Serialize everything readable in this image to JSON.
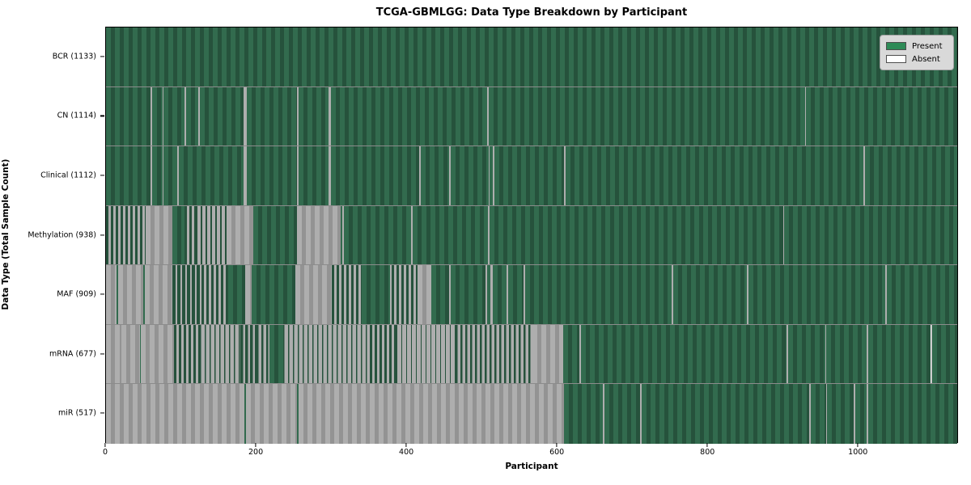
{
  "chart_data": {
    "type": "heatmap",
    "title": "TCGA-GBMLGG: Data Type Breakdown by Participant",
    "xlabel": "Participant",
    "ylabel": "Data Type (Total Sample Count)",
    "x_max": 1133,
    "x_ticks": [
      0,
      200,
      400,
      600,
      800,
      1000
    ],
    "grid": false,
    "legend_position": "upper right",
    "legend": [
      {
        "label": "Present",
        "color": "#2e8b57"
      },
      {
        "label": "Absent",
        "color": "#ffffff"
      }
    ],
    "rows": [
      {
        "name": "BCR",
        "total_sample_count": 1133,
        "label": "BCR (1133)",
        "segments": [
          [
            0,
            1133,
            "p"
          ]
        ]
      },
      {
        "name": "CN",
        "total_sample_count": 1114,
        "label": "CN (1114)",
        "segments": [
          [
            0,
            59,
            "p"
          ],
          [
            59,
            61,
            "a"
          ],
          [
            61,
            75,
            "p"
          ],
          [
            75,
            77,
            "a"
          ],
          [
            77,
            105,
            "p"
          ],
          [
            105,
            107,
            "a"
          ],
          [
            107,
            123,
            "p"
          ],
          [
            123,
            125,
            "a"
          ],
          [
            125,
            183,
            "p"
          ],
          [
            183,
            187,
            "a"
          ],
          [
            187,
            254,
            "p"
          ],
          [
            254,
            256,
            "a"
          ],
          [
            256,
            296,
            "p"
          ],
          [
            296,
            299,
            "a"
          ],
          [
            299,
            507,
            "p"
          ],
          [
            507,
            509,
            "a"
          ],
          [
            509,
            930,
            "p"
          ],
          [
            930,
            932,
            "a"
          ],
          [
            932,
            1133,
            "p"
          ]
        ]
      },
      {
        "name": "Clinical",
        "total_sample_count": 1112,
        "label": "Clinical (1112)",
        "segments": [
          [
            0,
            59,
            "p"
          ],
          [
            59,
            61,
            "a"
          ],
          [
            61,
            75,
            "p"
          ],
          [
            75,
            77,
            "a"
          ],
          [
            77,
            95,
            "p"
          ],
          [
            95,
            97,
            "a"
          ],
          [
            97,
            183,
            "p"
          ],
          [
            183,
            187,
            "a"
          ],
          [
            187,
            254,
            "p"
          ],
          [
            254,
            256,
            "a"
          ],
          [
            256,
            296,
            "p"
          ],
          [
            296,
            299,
            "a"
          ],
          [
            299,
            417,
            "p"
          ],
          [
            417,
            419,
            "a"
          ],
          [
            419,
            457,
            "p"
          ],
          [
            457,
            459,
            "a"
          ],
          [
            459,
            509,
            "p"
          ],
          [
            509,
            511,
            "a"
          ],
          [
            511,
            515,
            "p"
          ],
          [
            515,
            517,
            "a"
          ],
          [
            517,
            610,
            "p"
          ],
          [
            610,
            612,
            "a"
          ],
          [
            612,
            1008,
            "p"
          ],
          [
            1008,
            1010,
            "a"
          ],
          [
            1010,
            1133,
            "p"
          ]
        ]
      },
      {
        "name": "Methylation",
        "total_sample_count": 938,
        "label": "Methylation (938)",
        "segments": [
          [
            0,
            53,
            "m50"
          ],
          [
            53,
            88,
            "a"
          ],
          [
            88,
            104,
            "p"
          ],
          [
            104,
            120,
            "m50"
          ],
          [
            120,
            160,
            "m30"
          ],
          [
            160,
            196,
            "a"
          ],
          [
            196,
            254,
            "p"
          ],
          [
            254,
            312,
            "a"
          ],
          [
            312,
            314,
            "p"
          ],
          [
            314,
            317,
            "a"
          ],
          [
            317,
            406,
            "p"
          ],
          [
            406,
            408,
            "a"
          ],
          [
            408,
            508,
            "p"
          ],
          [
            508,
            510,
            "a"
          ],
          [
            510,
            901,
            "p"
          ],
          [
            901,
            903,
            "a"
          ],
          [
            903,
            1133,
            "p"
          ]
        ]
      },
      {
        "name": "MAF",
        "total_sample_count": 909,
        "label": "MAF (909)",
        "segments": [
          [
            0,
            14,
            "a"
          ],
          [
            14,
            16,
            "p"
          ],
          [
            16,
            50,
            "a"
          ],
          [
            50,
            52,
            "p"
          ],
          [
            52,
            88,
            "a"
          ],
          [
            88,
            127,
            "m70"
          ],
          [
            127,
            163,
            "m50"
          ],
          [
            163,
            185,
            "p"
          ],
          [
            185,
            194,
            "a"
          ],
          [
            194,
            252,
            "p"
          ],
          [
            252,
            300,
            "a"
          ],
          [
            300,
            340,
            "m50"
          ],
          [
            340,
            378,
            "p"
          ],
          [
            378,
            380,
            "a"
          ],
          [
            380,
            415,
            "m50"
          ],
          [
            415,
            433,
            "a"
          ],
          [
            433,
            457,
            "p"
          ],
          [
            457,
            459,
            "a"
          ],
          [
            459,
            505,
            "p"
          ],
          [
            505,
            507,
            "a"
          ],
          [
            507,
            512,
            "p"
          ],
          [
            512,
            515,
            "a"
          ],
          [
            515,
            533,
            "p"
          ],
          [
            533,
            535,
            "a"
          ],
          [
            535,
            556,
            "p"
          ],
          [
            556,
            558,
            "a"
          ],
          [
            558,
            753,
            "p"
          ],
          [
            753,
            755,
            "a"
          ],
          [
            755,
            853,
            "p"
          ],
          [
            853,
            855,
            "a"
          ],
          [
            855,
            1037,
            "p"
          ],
          [
            1037,
            1039,
            "a"
          ],
          [
            1039,
            1133,
            "p"
          ]
        ]
      },
      {
        "name": "mRNA",
        "total_sample_count": 677,
        "label": "mRNA (677)",
        "segments": [
          [
            0,
            20,
            "a"
          ],
          [
            20,
            21,
            "p"
          ],
          [
            21,
            45,
            "a"
          ],
          [
            45,
            46,
            "p"
          ],
          [
            46,
            90,
            "a"
          ],
          [
            90,
            125,
            "m50"
          ],
          [
            125,
            179,
            "m25"
          ],
          [
            179,
            200,
            "m60"
          ],
          [
            200,
            218,
            "m40"
          ],
          [
            218,
            236,
            "p"
          ],
          [
            236,
            351,
            "m25"
          ],
          [
            351,
            387,
            "m50"
          ],
          [
            387,
            465,
            "m20"
          ],
          [
            465,
            568,
            "m40"
          ],
          [
            568,
            608,
            "a"
          ],
          [
            608,
            630,
            "p"
          ],
          [
            630,
            632,
            "a"
          ],
          [
            632,
            906,
            "p"
          ],
          [
            906,
            908,
            "a"
          ],
          [
            908,
            957,
            "p"
          ],
          [
            957,
            959,
            "a"
          ],
          [
            959,
            1012,
            "p"
          ],
          [
            1012,
            1015,
            "a"
          ],
          [
            1015,
            1098,
            "p"
          ],
          [
            1098,
            1100,
            "a"
          ],
          [
            1100,
            1133,
            "p"
          ]
        ]
      },
      {
        "name": "miR",
        "total_sample_count": 517,
        "label": "miR (517)",
        "segments": [
          [
            0,
            184,
            "a"
          ],
          [
            184,
            186,
            "p"
          ],
          [
            186,
            254,
            "a"
          ],
          [
            254,
            256,
            "p"
          ],
          [
            256,
            610,
            "a"
          ],
          [
            610,
            661,
            "p"
          ],
          [
            661,
            663,
            "a"
          ],
          [
            663,
            711,
            "p"
          ],
          [
            711,
            713,
            "a"
          ],
          [
            713,
            936,
            "p"
          ],
          [
            936,
            938,
            "a"
          ],
          [
            938,
            958,
            "p"
          ],
          [
            958,
            960,
            "a"
          ],
          [
            960,
            995,
            "p"
          ],
          [
            995,
            997,
            "a"
          ],
          [
            997,
            1012,
            "p"
          ],
          [
            1012,
            1015,
            "a"
          ],
          [
            1015,
            1133,
            "p"
          ]
        ]
      }
    ],
    "segment_colors": {
      "present_stripe_light": "#326b4e",
      "present_stripe_dark": "#26523c",
      "absent_stripe_light": "#aeaeae",
      "absent_stripe_dark": "#939393"
    }
  }
}
